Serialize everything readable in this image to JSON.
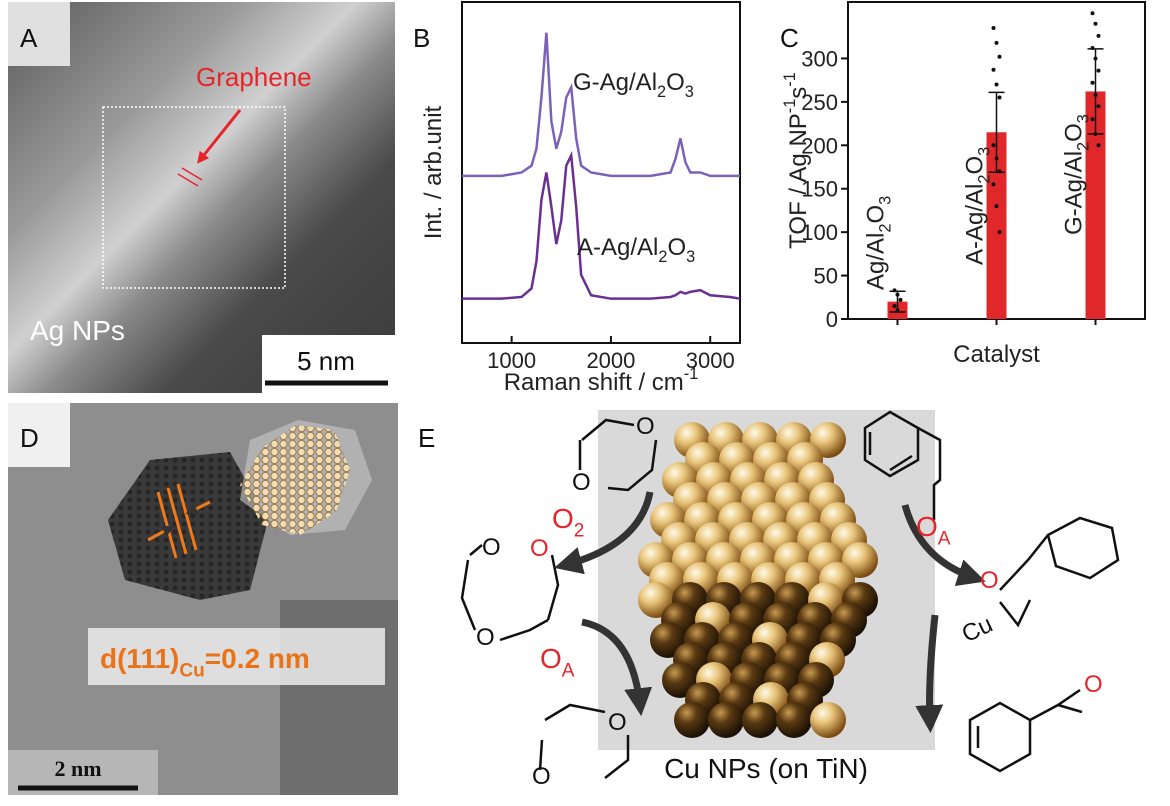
{
  "panel_a": {
    "label": "A",
    "annotation": "Graphene",
    "caption": "Ag NPs",
    "scale_bar": "5 nm"
  },
  "panel_d": {
    "label": "D",
    "annotation": [
      "d(111)",
      {
        "t": "Cu",
        "s": "sub"
      },
      "=0.2 nm"
    ],
    "scale_bar": "2 nm"
  },
  "panel_e": {
    "label": "E",
    "caption": "Cu NPs (on TiN)",
    "reagents": [
      [
        "O",
        {
          "t": "2",
          "s": "sub"
        }
      ],
      [
        "O",
        {
          "t": "A",
          "s": "sub"
        }
      ],
      [
        "O",
        {
          "t": "A",
          "s": "sub"
        }
      ]
    ],
    "atoms": [
      "O",
      "O",
      "O",
      "O",
      "O",
      "O",
      "O",
      "O",
      "Cu",
      "O"
    ]
  },
  "chart_data": [
    {
      "type": "line",
      "panel_label": "B",
      "x": [
        500,
        700,
        900,
        1100,
        1200,
        1250,
        1300,
        1350,
        1400,
        1450,
        1500,
        1550,
        1600,
        1650,
        1700,
        1800,
        2000,
        2200,
        2400,
        2600,
        2650,
        2700,
        2750,
        2800,
        2900,
        3000,
        3200,
        3300
      ],
      "series": [
        {
          "name": [
            "G-Ag/Al",
            {
              "t": "2",
              "s": "sub"
            },
            "O",
            {
              "t": "3",
              "s": "sub"
            }
          ],
          "color": "#7b62b8",
          "values": [
            0.49,
            0.49,
            0.49,
            0.5,
            0.52,
            0.57,
            0.72,
            0.91,
            0.65,
            0.57,
            0.62,
            0.72,
            0.75,
            0.6,
            0.52,
            0.5,
            0.49,
            0.49,
            0.49,
            0.5,
            0.54,
            0.6,
            0.53,
            0.5,
            0.5,
            0.49,
            0.49,
            0.49
          ]
        },
        {
          "name": [
            "A-Ag/Al",
            {
              "t": "2",
              "s": "sub"
            },
            "O",
            {
              "t": "3",
              "s": "sub"
            }
          ],
          "color": "#6b2f92",
          "values": [
            0.13,
            0.13,
            0.13,
            0.135,
            0.16,
            0.24,
            0.42,
            0.5,
            0.4,
            0.29,
            0.36,
            0.52,
            0.55,
            0.4,
            0.2,
            0.14,
            0.13,
            0.13,
            0.13,
            0.135,
            0.14,
            0.15,
            0.145,
            0.15,
            0.155,
            0.14,
            0.135,
            0.13
          ]
        }
      ],
      "xlim": [
        500,
        3300
      ],
      "ylim": [
        0,
        1
      ],
      "xticks": [
        1000,
        2000,
        3000
      ],
      "xlabel": [
        "Raman shift / cm",
        {
          "t": "-1",
          "s": "sup"
        }
      ],
      "ylabel": "Int. / arb.unit"
    },
    {
      "type": "bar",
      "panel_label": "C",
      "categories": [
        [
          "Ag/Al",
          {
            "t": "2",
            "s": "sub"
          },
          "O",
          {
            "t": "3",
            "s": "sub"
          }
        ],
        [
          "A-Ag/Al",
          {
            "t": "2",
            "s": "sub"
          },
          "O",
          {
            "t": "3",
            "s": "sub"
          }
        ],
        [
          "G-Ag/Al",
          {
            "t": "2",
            "s": "sub"
          },
          "O",
          {
            "t": "3",
            "s": "sub"
          }
        ]
      ],
      "values": [
        20,
        215,
        262
      ],
      "errors": [
        12,
        46,
        49
      ],
      "points": [
        [
          33,
          28,
          22,
          15,
          10
        ],
        [
          335,
          318,
          302,
          287,
          270,
          255,
          200,
          185,
          170,
          155,
          130,
          100
        ],
        [
          352,
          340,
          326,
          312,
          300,
          286,
          272,
          258,
          245,
          230,
          213,
          200
        ]
      ],
      "color": "#e0282a",
      "ylim": [
        0,
        365
      ],
      "yticks": [
        0,
        50,
        100,
        150,
        200,
        250,
        300
      ],
      "xlabel": "Catalyst",
      "ylabel": [
        "TOF / Ag NP",
        {
          "t": "-1",
          "s": "sup"
        },
        "s",
        {
          "t": "-1",
          "s": "sup"
        }
      ]
    }
  ]
}
